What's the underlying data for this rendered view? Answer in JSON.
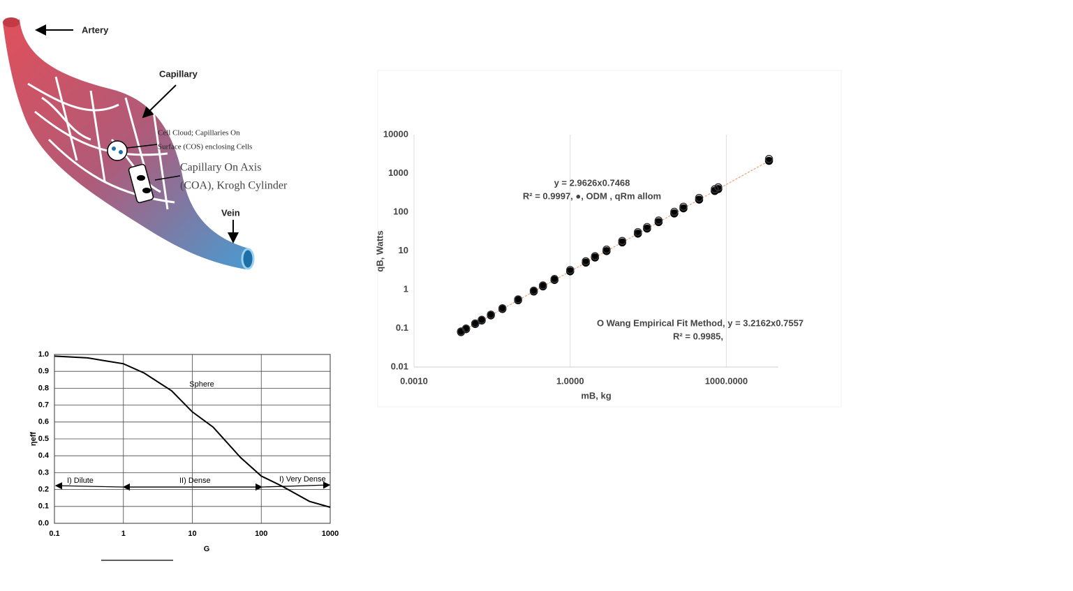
{
  "diagram": {
    "artery": "Artery",
    "capillary": "Capillary",
    "cos_line1": "Cell Cloud; Capillaries On",
    "cos_line2": "Surface (COS) enclosing Cells",
    "coa_line1": "Capillary On Axis",
    "coa_line2": "(COA), Krogh Cylinder",
    "vein": "Vein"
  },
  "chart_data": [
    {
      "type": "line",
      "xlabel": "G",
      "ylabel": "ηeff",
      "xscale": "log",
      "grid": true,
      "color": "#000000",
      "x": [
        0.1,
        0.3,
        0.5,
        1,
        2,
        5,
        10,
        20,
        50,
        100,
        200,
        500,
        1000
      ],
      "values": [
        0.99,
        0.98,
        0.965,
        0.945,
        0.89,
        0.785,
        0.66,
        0.57,
        0.39,
        0.28,
        0.22,
        0.13,
        0.095
      ],
      "xlim": [
        0.1,
        1000
      ],
      "xticks": [
        0.1,
        1,
        10,
        100,
        1000
      ],
      "ylim": [
        0,
        1
      ],
      "yticks": [
        {
          "value": 0,
          "label": "0.0"
        },
        0.1,
        0.2,
        0.3,
        0.4,
        0.5,
        0.6,
        0.7,
        0.8,
        0.9,
        {
          "value": 1,
          "label": "1.0"
        }
      ],
      "annotations": [
        "Sphere",
        "I) Dilute",
        "II) Dense",
        "I) Very Dense"
      ]
    },
    {
      "type": "scatter",
      "xlabel": "mB, kg",
      "ylabel": "qB, Watts",
      "xscale": "log",
      "yscale": "log",
      "grid": true,
      "x": [
        0.008,
        0.01,
        0.015,
        0.02,
        0.03,
        0.05,
        0.1,
        0.2,
        0.3,
        0.5,
        1,
        2,
        3,
        5,
        10,
        20,
        30,
        50,
        100,
        150,
        300,
        600,
        700,
        6600
      ],
      "series": [
        {
          "color": "#000000",
          "marker": "filled",
          "values": [
            0.08,
            0.095,
            0.129,
            0.159,
            0.216,
            0.316,
            0.531,
            0.891,
            1.21,
            1.77,
            2.96,
            4.97,
            6.73,
            9.86,
            16.5,
            27.8,
            37.6,
            55.1,
            92.3,
            125,
            210,
            352,
            395,
            2110
          ]
        },
        {
          "color": "#333333",
          "marker": "open",
          "values": [
            0.083,
            0.099,
            0.134,
            0.166,
            0.226,
            0.33,
            0.56,
            0.94,
            1.28,
            1.88,
            3.22,
            5.4,
            7.3,
            10.8,
            18.1,
            30.5,
            41.3,
            60.7,
            102,
            138,
            233,
            391,
            439,
            2360
          ]
        }
      ],
      "xlim": [
        0.001,
        10000
      ],
      "xticks": [
        {
          "value": 0.001,
          "label": "0.0010"
        },
        {
          "value": 1,
          "label": "1.0000"
        },
        {
          "value": 1000,
          "label": "1000.0000"
        }
      ],
      "ylim": [
        0.01,
        10000
      ],
      "yticks": [
        0.01,
        0.1,
        1,
        10,
        100,
        1000,
        10000
      ],
      "annotations": [
        "y = 2.9626x0.7468",
        "R² = 0.9997, ●, ODM , qRm allom",
        "O Wang Empirical Fit Method, y = 3.2162x0.7557",
        "R² = 0.9985,"
      ]
    }
  ]
}
